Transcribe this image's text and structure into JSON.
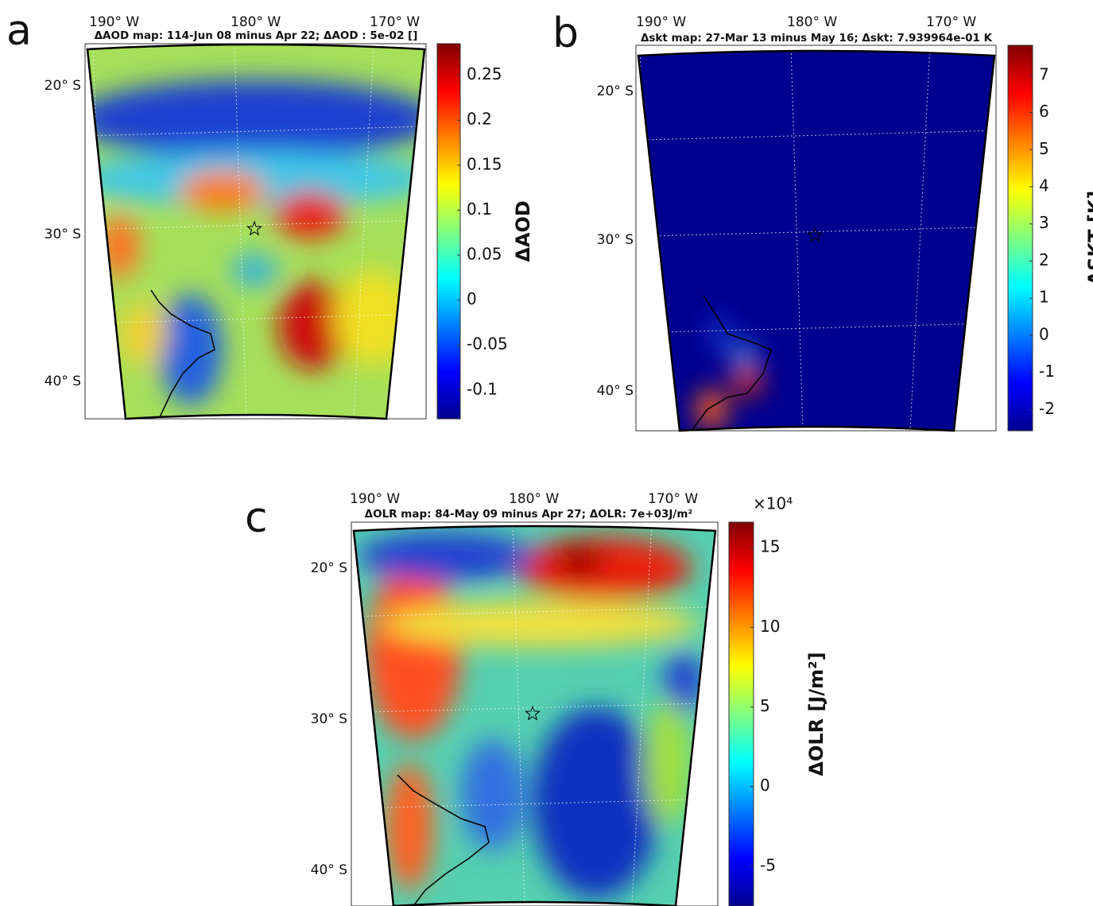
{
  "panels": [
    {
      "label": "a",
      "title": "ΔAOD  map: 114-Jun 08 minus Apr 22; ΔAOD : 5e-02 []",
      "lon_labels": [
        "190° W",
        "180° W",
        "170° W"
      ],
      "lat_labels": [
        "20° S",
        "30° S",
        "40° S"
      ],
      "colorbar": {
        "label": "ΔAOD",
        "lim": [
          -0.132,
          0.285
        ],
        "ticks": [
          -0.1,
          -0.05,
          0,
          0.05,
          0.1,
          0.15,
          0.2,
          0.25
        ]
      }
    },
    {
      "label": "b",
      "title": "Δskt map: 27-Mar 13 minus May 16; Δskt: 7.939964e-01 K",
      "lon_labels": [
        "190° W",
        "180° W",
        "170° W"
      ],
      "lat_labels": [
        "20° S",
        "30° S",
        "40° S"
      ],
      "colorbar": {
        "label": "ΔSKT [K]",
        "lim": [
          -2.57,
          7.81
        ],
        "ticks": [
          -2,
          -1,
          0,
          1,
          2,
          3,
          4,
          5,
          6,
          7
        ]
      }
    },
    {
      "label": "c",
      "title": "ΔOLR map: 84-May 09 minus Apr 27; ΔOLR: 7e+03J/m²",
      "lon_labels": [
        "190° W",
        "180° W",
        "170° W"
      ],
      "lat_labels": [
        "20° S",
        "30° S",
        "40° S"
      ],
      "colorbar": {
        "label": "ΔOLR [J/m²]",
        "exponent": "×10⁴",
        "lim": [
          -7.5,
          16.6
        ],
        "ticks": [
          -5,
          0,
          5,
          10,
          15
        ]
      }
    }
  ]
}
